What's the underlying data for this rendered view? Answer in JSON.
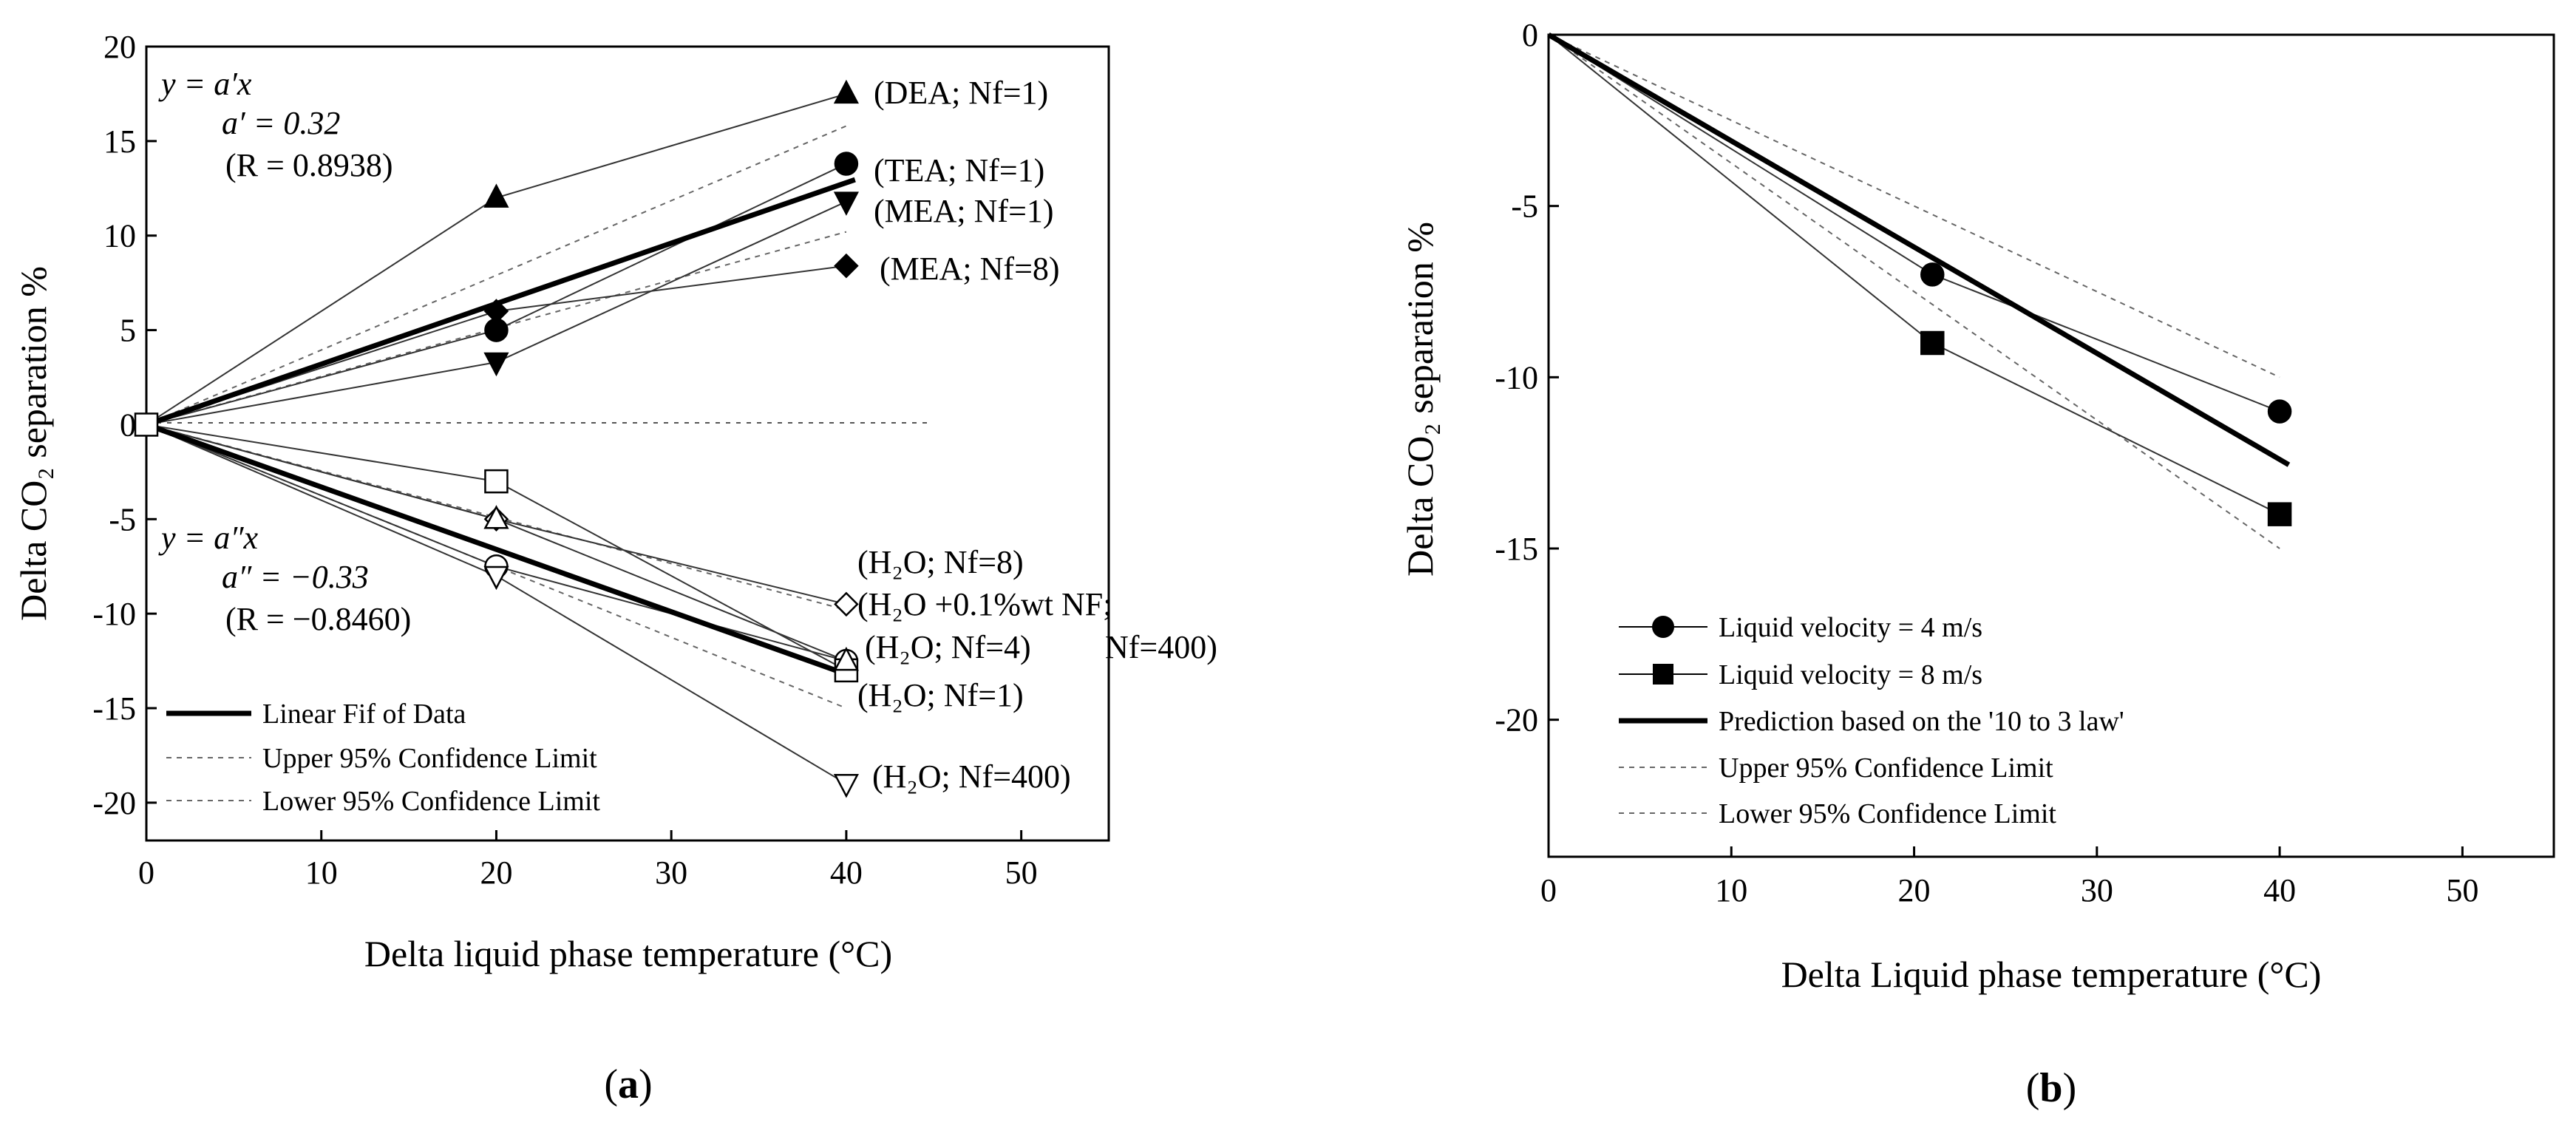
{
  "chart_data": [
    {
      "type": "line",
      "panel_label": "(a)",
      "panel_letter": "a",
      "xlabel": "Delta liquid phase temperature (°C)",
      "ylabel": "Delta CO₂ separation %",
      "xlim": [
        0,
        55
      ],
      "ylim": [
        -22,
        20
      ],
      "xticks": [
        0,
        10,
        20,
        30,
        40,
        50
      ],
      "yticks": [
        20,
        15,
        10,
        5,
        0,
        -5,
        -10,
        -15,
        -20
      ],
      "annotations": {
        "fit_pos_eq": "y = a′x",
        "fit_pos_a": "a′ = 0.32",
        "fit_pos_r": "(R = 0.8938)",
        "fit_neg_eq": "y = a″x",
        "fit_neg_a": "a″ = −0.33",
        "fit_neg_r": "(R = −0.8460)"
      },
      "series": [
        {
          "name": "(DEA; Nf=1)",
          "marker": "triangle-up",
          "x": [
            0,
            20,
            40
          ],
          "y": [
            0,
            12,
            17.5
          ]
        },
        {
          "name": "(TEA; Nf=1)",
          "marker": "circle",
          "x": [
            0,
            20,
            40
          ],
          "y": [
            0,
            5,
            13.8
          ]
        },
        {
          "name": "(MEA; Nf=1)",
          "marker": "triangle-down",
          "x": [
            0,
            20,
            40
          ],
          "y": [
            0,
            3.3,
            11.8
          ]
        },
        {
          "name": "(MEA; Nf=8)",
          "marker": "diamond",
          "x": [
            0,
            20,
            40
          ],
          "y": [
            0,
            6,
            8.4
          ]
        },
        {
          "name": "(H₂O; Nf=8)",
          "marker": "open-diamond",
          "x": [
            0,
            20,
            40
          ],
          "y": [
            0,
            -5,
            -9.5
          ]
        },
        {
          "name": "(H₂O +0.1%wt NF; Nf=400)",
          "marker": "open-circle",
          "x": [
            0,
            20,
            40
          ],
          "y": [
            0,
            -7.5,
            -12.5
          ]
        },
        {
          "name": "(H₂O; Nf=4)",
          "marker": "open-square",
          "x": [
            0,
            20,
            40
          ],
          "y": [
            0,
            -3,
            -13
          ]
        },
        {
          "name": "(H₂O; Nf=1)",
          "marker": "open-triangle-up",
          "x": [
            0,
            20,
            40
          ],
          "y": [
            0,
            -5,
            -12.5
          ]
        },
        {
          "name": "(H₂O; Nf=400)",
          "marker": "open-triangle-down",
          "x": [
            0,
            20,
            40
          ],
          "y": [
            0,
            -8,
            -19
          ]
        }
      ],
      "label_texts": {
        "dea1": "(DEA; Nf=1)",
        "tea1": "(TEA; Nf=1)",
        "mea1": "(MEA; Nf=1)",
        "mea8": "(MEA; Nf=8)",
        "h2o8": "(H₂O; Nf=8)",
        "h2onf_1": "(H₂O +0.1%wt NF;",
        "h2onf_2": "Nf=400)",
        "h2o4": "(H₂O; Nf=4)",
        "h2o1": "(H₂O; Nf=1)",
        "h2o400": "(H₂O; Nf=400)"
      },
      "fits": {
        "positive": {
          "slope": 0.32,
          "upper_at_40": 15.8,
          "lower_at_40": 10.2
        },
        "negative": {
          "slope": -0.33,
          "upper_at_40": -9.8,
          "lower_at_40": -15
        }
      },
      "legend": {
        "position": "bottom-left",
        "entries": [
          "Linear Fif of Data",
          "Upper 95% Confidence Limit",
          "Lower 95% Confidence Limit"
        ]
      }
    },
    {
      "type": "line",
      "panel_label": "(b)",
      "panel_letter": "b",
      "xlabel": "Delta Liquid phase temperature (°C)",
      "ylabel": "Delta CO₂ separation %",
      "xlim": [
        0,
        55
      ],
      "ylim": [
        -24,
        0
      ],
      "xticks": [
        0,
        10,
        20,
        30,
        40,
        50
      ],
      "yticks": [
        0,
        -5,
        -10,
        -15,
        -20
      ],
      "series": [
        {
          "name": "Liquid velocity = 4 m/s",
          "marker": "circle",
          "x": [
            0,
            21,
            40
          ],
          "y": [
            0,
            -7,
            -11
          ]
        },
        {
          "name": "Liquid velocity = 8 m/s",
          "marker": "square",
          "x": [
            0,
            21,
            40
          ],
          "y": [
            0,
            -9,
            -14
          ]
        }
      ],
      "prediction": {
        "name": "Prediction based on the '10 to 3 law'",
        "slope": -0.31,
        "upper_at_40": -10,
        "lower_at_40": -15
      },
      "legend": {
        "position": "bottom-left",
        "entries": [
          "Liquid velocity = 4 m/s",
          "Liquid velocity = 8 m/s",
          "Prediction based on the '10 to 3 law'",
          "Upper 95% Confidence Limit",
          "Lower 95% Confidence Limit"
        ]
      }
    }
  ]
}
